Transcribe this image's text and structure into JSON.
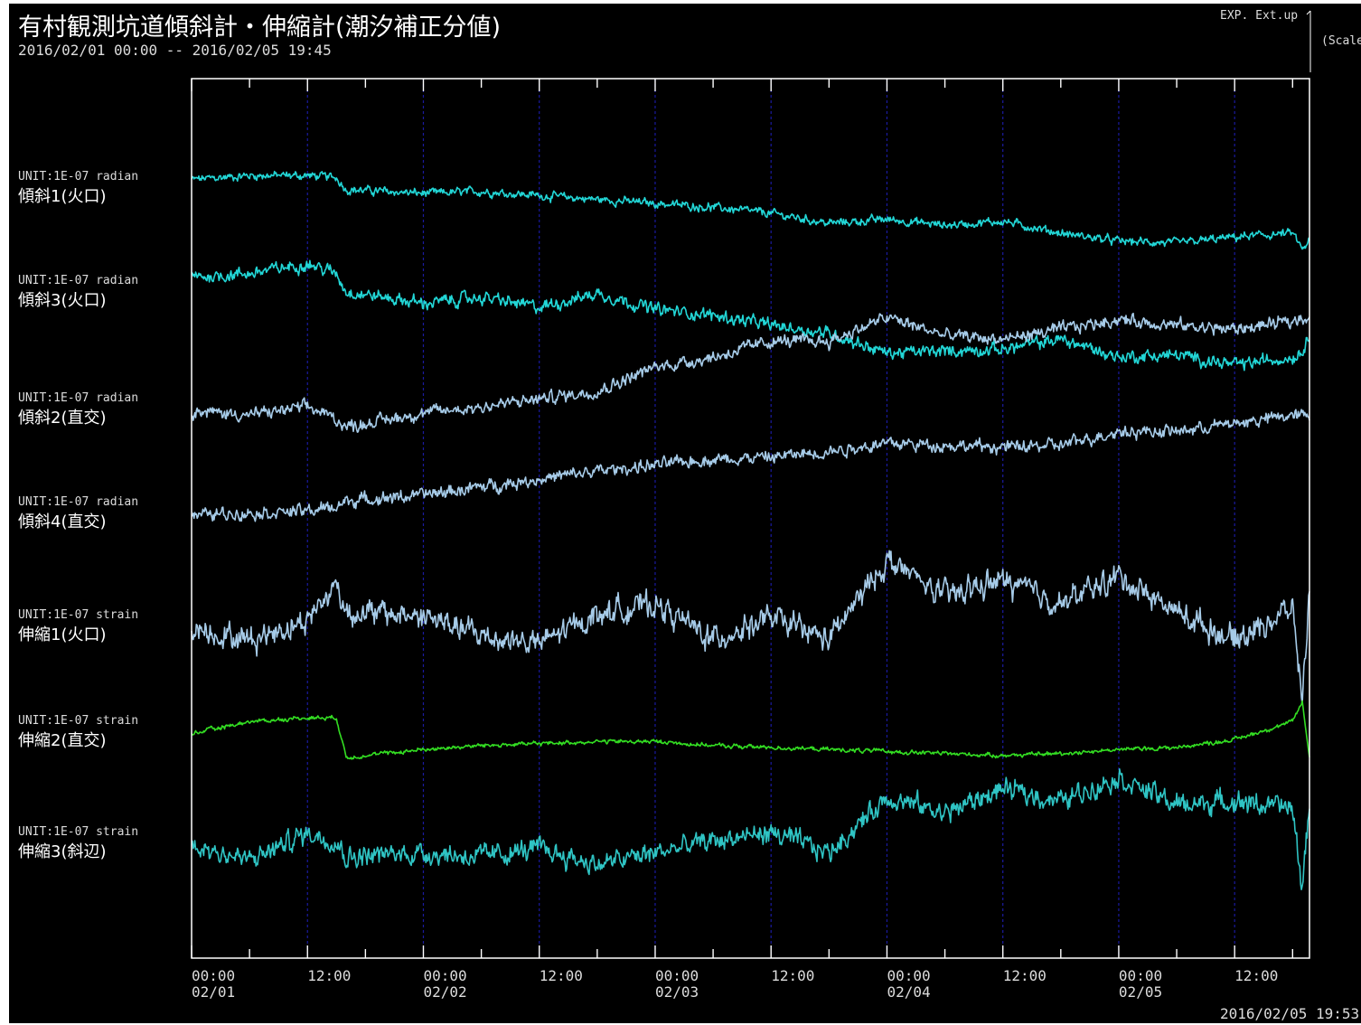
{
  "header": {
    "title": "有村観測坑道傾斜計・伸縮計(潮汐補正分値)",
    "range": "2016/02/01 00:00 -- 2016/02/05 19:45",
    "note": "EXP. Ext.up",
    "scale_note": "(Scale",
    "timestamp": "2016/02/05 19:53"
  },
  "colors": {
    "background": "#000000",
    "frame": "#ffffff",
    "gridline": "#1a1aa0",
    "cyan": "#22d6d6",
    "lightblue": "#a6cbe8",
    "green": "#33dd22",
    "teal": "#2fc4c4"
  },
  "chart_data": {
    "type": "line",
    "x_range": [
      "2016/02/01 00:00",
      "2016/02/05 19:45"
    ],
    "x_ticks": [
      {
        "time": "00:00",
        "date": "02/01"
      },
      {
        "time": "12:00",
        "date": ""
      },
      {
        "time": "00:00",
        "date": "02/02"
      },
      {
        "time": "12:00",
        "date": ""
      },
      {
        "time": "00:00",
        "date": "02/03"
      },
      {
        "time": "12:00",
        "date": ""
      },
      {
        "time": "00:00",
        "date": "02/04"
      },
      {
        "time": "12:00",
        "date": ""
      },
      {
        "time": "00:00",
        "date": "02/05"
      },
      {
        "time": "12:00",
        "date": ""
      }
    ],
    "grid": "vertical dashed every 12h",
    "x": [
      "02/01 00:00",
      "02/01 06:00",
      "02/01 12:00",
      "02/01 15:00",
      "02/01 16:00",
      "02/02 00:00",
      "02/02 06:00",
      "02/02 12:00",
      "02/02 18:00",
      "02/03 00:00",
      "02/03 06:00",
      "02/03 12:00",
      "02/03 18:00",
      "02/04 00:00",
      "02/04 06:00",
      "02/04 12:00",
      "02/04 18:00",
      "02/05 00:00",
      "02/05 06:00",
      "02/05 12:00",
      "02/05 18:00",
      "02/05 19:00",
      "02/05 19:45"
    ],
    "series": [
      {
        "name": "傾斜1(火口)",
        "unit": "UNIT:1E-07 radian",
        "color": "cyan",
        "noise": 2,
        "values": [
          7,
          9,
          9,
          8,
          2,
          0,
          1,
          -1,
          -3,
          -5,
          -7,
          -10,
          -15,
          -13,
          -16,
          -14,
          -20,
          -24,
          -25,
          -22,
          -20,
          -28,
          -24
        ]
      },
      {
        "name": "傾斜3(火口)",
        "unit": "UNIT:1E-07 radian",
        "color": "cyan",
        "noise": 3,
        "values": [
          10,
          12,
          17,
          12,
          3,
          -3,
          0,
          -5,
          2,
          -6,
          -9,
          -14,
          -18,
          -28,
          -27,
          -26,
          -21,
          -30,
          -29,
          -34,
          -30,
          -27,
          -20
        ]
      },
      {
        "name": "傾斜2(直交)",
        "unit": "UNIT:1E-07 radian",
        "color": "lightblue",
        "noise": 3,
        "values": [
          2,
          0,
          4,
          -2,
          -6,
          1,
          4,
          8,
          12,
          24,
          29,
          37,
          37,
          49,
          40,
          38,
          43,
          48,
          45,
          43,
          47,
          49,
          50
        ]
      },
      {
        "name": "傾斜4(直交)",
        "unit": "UNIT:1E-07 radian",
        "color": "lightblue",
        "noise": 3,
        "values": [
          2,
          3,
          4,
          6,
          9,
          12,
          16,
          20,
          24,
          27,
          30,
          31,
          34,
          38,
          37,
          36,
          37,
          44,
          44,
          48,
          52,
          52,
          52
        ]
      },
      {
        "name": "伸縮1(火口)",
        "unit": "UNIT:1E-07 strain",
        "color": "lightblue",
        "noise": 6,
        "values": [
          2,
          -4,
          6,
          24,
          10,
          8,
          -2,
          -6,
          9,
          14,
          -4,
          7,
          -4,
          36,
          18,
          26,
          14,
          28,
          10,
          -4,
          12,
          -34,
          20
        ]
      },
      {
        "name": "伸縮2(直交)",
        "unit": "UNIT:1E-07 strain",
        "color": "green",
        "noise": 1,
        "values": [
          2,
          8,
          10,
          10,
          -10,
          -6,
          -4,
          -3,
          -2,
          -2,
          -4,
          -5,
          -6,
          -7,
          -8,
          -9,
          -8,
          -6,
          -5,
          -1,
          8,
          18,
          -10
        ]
      },
      {
        "name": "伸縮3(斜辺)",
        "unit": "UNIT:1E-07 strain",
        "color": "teal",
        "noise": 5,
        "values": [
          2,
          -6,
          8,
          4,
          -4,
          -2,
          -4,
          0,
          -8,
          -2,
          4,
          8,
          -2,
          26,
          18,
          30,
          24,
          36,
          22,
          24,
          20,
          -20,
          22
        ]
      }
    ]
  }
}
